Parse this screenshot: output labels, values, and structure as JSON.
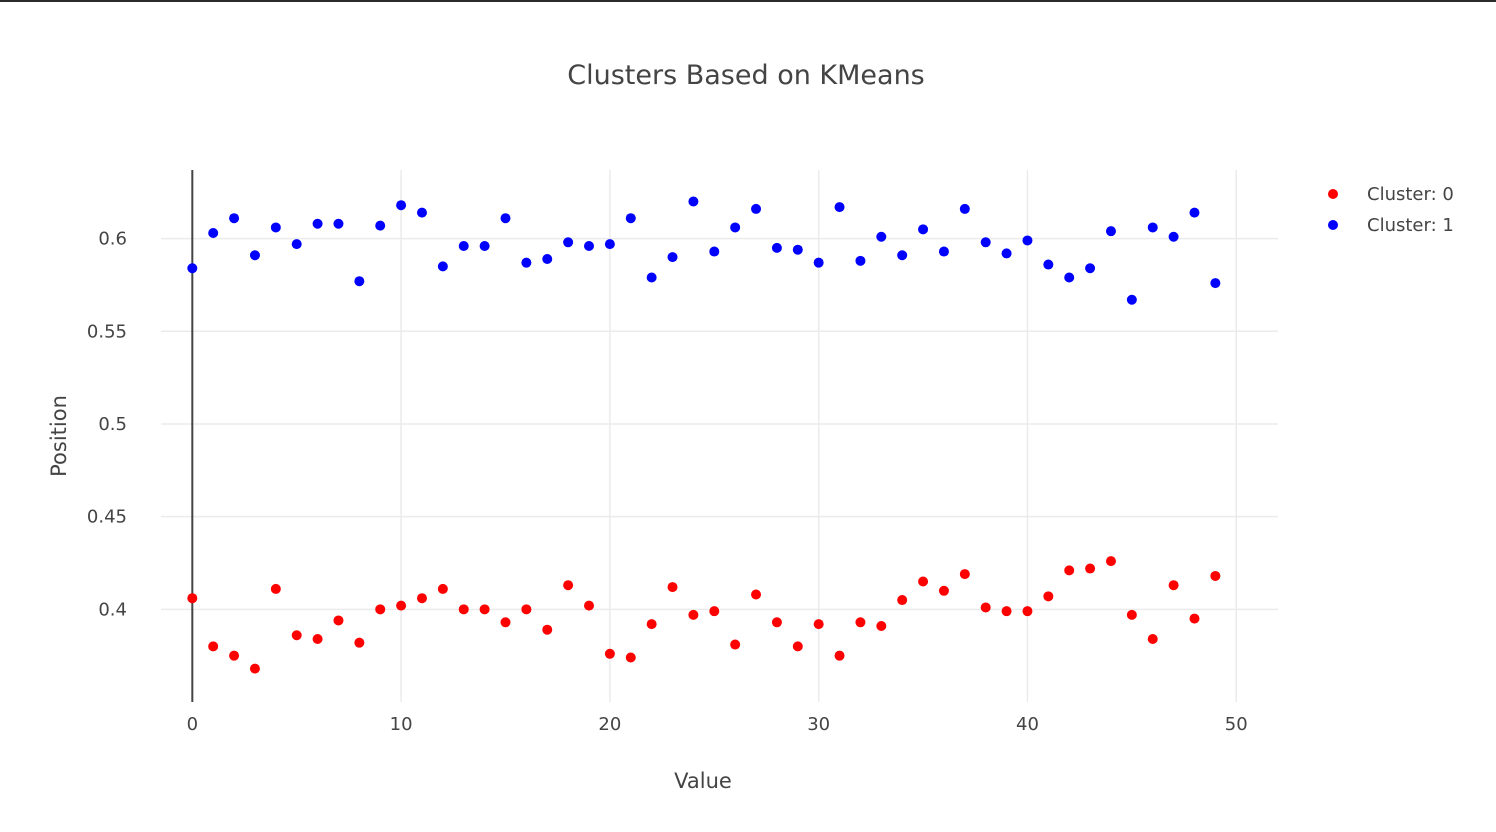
{
  "chart_data": {
    "type": "scatter",
    "title": "Clusters Based on KMeans",
    "xlabel": "Value",
    "ylabel": "Position",
    "xlim": [
      -1.5,
      52
    ],
    "ylim": [
      0.35,
      0.637
    ],
    "x_ticks": [
      0,
      10,
      20,
      30,
      40,
      50
    ],
    "x_tick_labels": [
      "0",
      "10",
      "20",
      "30",
      "40",
      "50"
    ],
    "y_ticks": [
      0.4,
      0.45,
      0.5,
      0.55,
      0.6
    ],
    "y_tick_labels": [
      "0.4",
      "0.45",
      "0.5",
      "0.55",
      "0.6"
    ],
    "grid": true,
    "legend_position": "top-right",
    "series": [
      {
        "name": "Cluster: 0",
        "color": "#ff0000",
        "x": [
          0,
          1,
          2,
          3,
          4,
          5,
          6,
          7,
          8,
          9,
          10,
          11,
          12,
          13,
          14,
          15,
          16,
          17,
          18,
          19,
          20,
          21,
          22,
          23,
          24,
          25,
          26,
          27,
          28,
          29,
          30,
          31,
          32,
          33,
          34,
          35,
          36,
          37,
          38,
          39,
          40,
          41,
          42,
          43,
          44,
          45,
          46,
          47,
          48,
          49
        ],
        "y": [
          0.406,
          0.38,
          0.375,
          0.368,
          0.411,
          0.386,
          0.384,
          0.394,
          0.382,
          0.4,
          0.402,
          0.406,
          0.411,
          0.4,
          0.4,
          0.393,
          0.4,
          0.389,
          0.413,
          0.402,
          0.376,
          0.374,
          0.392,
          0.412,
          0.397,
          0.399,
          0.381,
          0.408,
          0.393,
          0.38,
          0.392,
          0.375,
          0.393,
          0.391,
          0.405,
          0.415,
          0.41,
          0.419,
          0.401,
          0.399,
          0.399,
          0.407,
          0.421,
          0.422,
          0.426,
          0.397,
          0.384,
          0.413,
          0.395,
          0.418
        ]
      },
      {
        "name": "Cluster: 1",
        "color": "#0000ff",
        "x": [
          0,
          1,
          2,
          3,
          4,
          5,
          6,
          7,
          8,
          9,
          10,
          11,
          12,
          13,
          14,
          15,
          16,
          17,
          18,
          19,
          20,
          21,
          22,
          23,
          24,
          25,
          26,
          27,
          28,
          29,
          30,
          31,
          32,
          33,
          34,
          35,
          36,
          37,
          38,
          39,
          40,
          41,
          42,
          43,
          44,
          45,
          46,
          47,
          48,
          49
        ],
        "y": [
          0.584,
          0.603,
          0.611,
          0.591,
          0.606,
          0.597,
          0.608,
          0.608,
          0.577,
          0.607,
          0.618,
          0.614,
          0.585,
          0.596,
          0.596,
          0.611,
          0.587,
          0.589,
          0.598,
          0.596,
          0.597,
          0.611,
          0.579,
          0.59,
          0.62,
          0.593,
          0.606,
          0.616,
          0.595,
          0.594,
          0.587,
          0.617,
          0.588,
          0.601,
          0.591,
          0.605,
          0.593,
          0.616,
          0.598,
          0.592,
          0.599,
          0.586,
          0.579,
          0.584,
          0.604,
          0.567,
          0.606,
          0.601,
          0.614,
          0.576
        ]
      }
    ]
  }
}
